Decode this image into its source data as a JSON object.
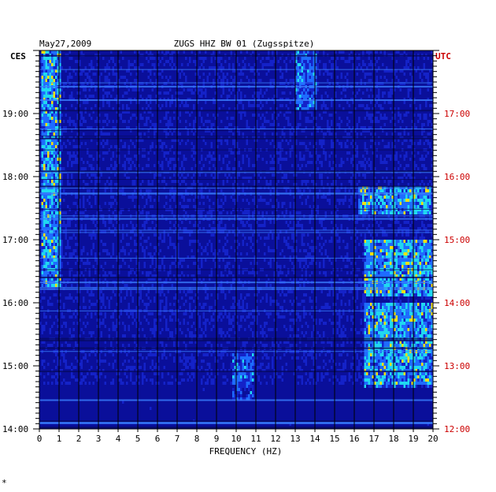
{
  "chart_data": {
    "type": "heatmap",
    "title": "ZUGS HHZ BW 01 (Zugsspitze)",
    "date": "May27,2009",
    "xlabel": "FREQUENCY (HZ)",
    "xlim": [
      0,
      20
    ],
    "x_ticks": [
      "0",
      "1",
      "2",
      "3",
      "4",
      "5",
      "6",
      "7",
      "8",
      "9",
      "10",
      "11",
      "12",
      "13",
      "14",
      "15",
      "16",
      "17",
      "18",
      "19",
      "20"
    ],
    "left_axis_label": "CES",
    "right_axis_label": "UTC",
    "left_time_ticks": [
      "19:00",
      "18:00",
      "17:00",
      "16:00",
      "15:00",
      "14:00"
    ],
    "right_time_ticks": [
      "17:00",
      "16:00",
      "15:00",
      "14:00",
      "13:00",
      "12:00"
    ],
    "colors": {
      "background": "#1422c8",
      "low": "#0a0f9a",
      "mid": "#1e6cff",
      "cyan": "#20d8f0",
      "yellow": "#f0e010",
      "red": "#e02010",
      "grid": "#000000",
      "utc": "#cc0000"
    },
    "hot_regions": [
      {
        "freq": [
          0.1,
          1.0
        ],
        "hours_before_top": [
          0.0,
          3.7
        ],
        "intensity": "high"
      },
      {
        "freq": [
          13.0,
          14.0
        ],
        "hours_before_top": [
          0.0,
          0.9
        ],
        "intensity": "medium"
      },
      {
        "freq": [
          16.2,
          19.8
        ],
        "hours_before_top": [
          2.1,
          2.55
        ],
        "intensity": "high"
      },
      {
        "freq": [
          16.5,
          20.0
        ],
        "hours_before_top": [
          3.0,
          3.9
        ],
        "intensity": "high"
      },
      {
        "freq": [
          16.5,
          20.0
        ],
        "hours_before_top": [
          4.0,
          5.3
        ],
        "intensity": "high"
      },
      {
        "freq": [
          9.8,
          10.8
        ],
        "hours_before_top": [
          4.8,
          5.5
        ],
        "intensity": "medium"
      },
      {
        "freq": [
          0.0,
          20.0
        ],
        "hours_before_top": [
          5.3,
          6.0
        ],
        "intensity": "low"
      }
    ]
  },
  "footer_mark": "*"
}
